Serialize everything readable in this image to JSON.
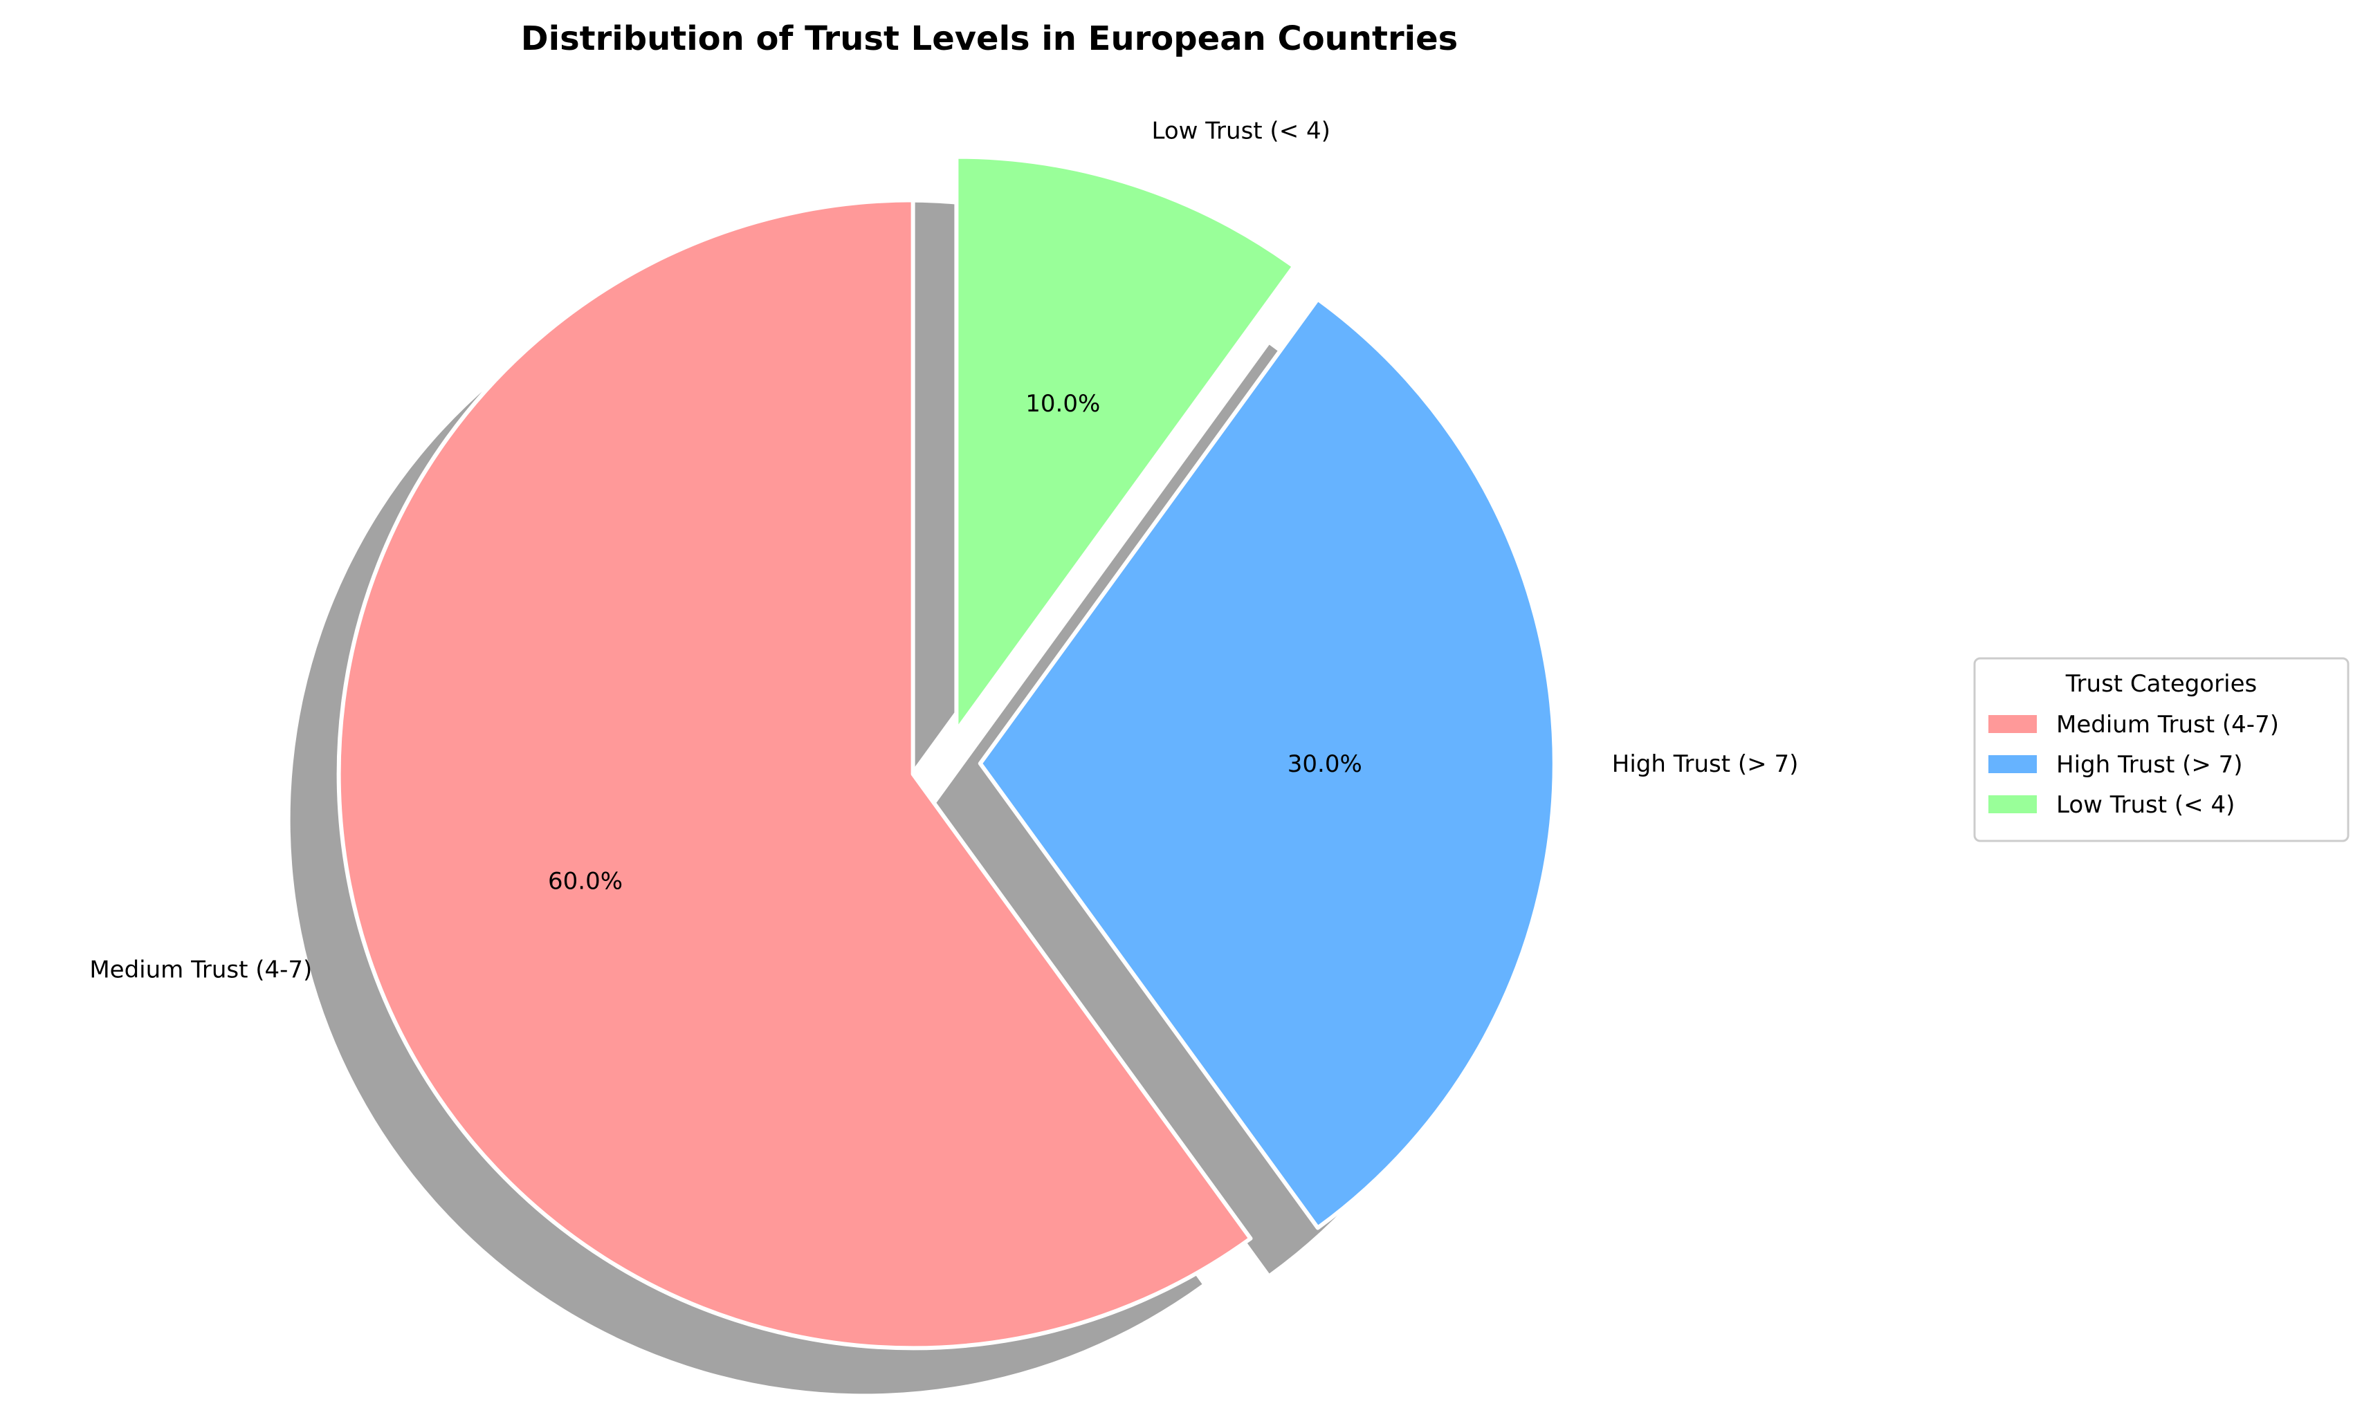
{
  "chart_data": {
    "type": "pie",
    "title": "Distribution of Trust Levels in European Countries",
    "slices": [
      {
        "label": "Medium Trust (4-7)",
        "value": 60.0,
        "pct_label": "60.0%",
        "color": "#ff9999"
      },
      {
        "label": "High Trust (> 7)",
        "value": 30.0,
        "pct_label": "30.0%",
        "color": "#66b3ff"
      },
      {
        "label": "Low Trust (< 4)",
        "value": 10.0,
        "pct_label": "10.0%",
        "color": "#99ff99"
      }
    ],
    "exploded": true,
    "shadow": true,
    "start_angle": 90,
    "direction": "counterclockwise",
    "legend": {
      "title": "Trust Categories",
      "placement": "center-right",
      "entries": [
        "Medium Trust (4-7)",
        "High Trust (> 7)",
        "Low Trust (< 4)"
      ]
    }
  }
}
